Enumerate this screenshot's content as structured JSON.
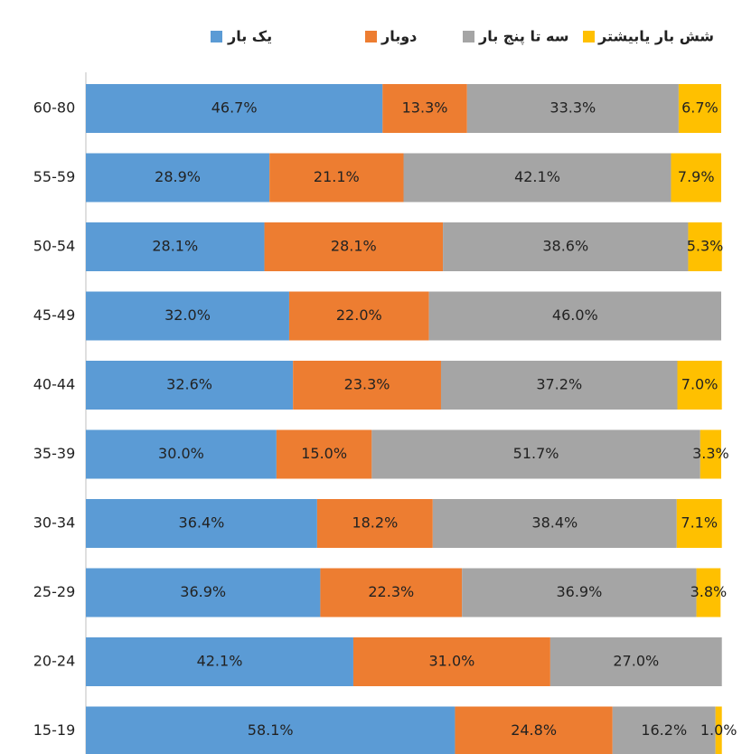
{
  "chart_data": {
    "type": "stacked_barh",
    "categories": [
      "60-80",
      "55-59",
      "50-54",
      "45-49",
      "40-44",
      "35-39",
      "30-34",
      "25-29",
      "20-24",
      "15-19"
    ],
    "xlim": [
      0,
      100
    ],
    "series": [
      {
        "name": "یک بار",
        "color": "#5b9bd5",
        "values": [
          46.7,
          28.9,
          28.1,
          32.0,
          32.6,
          30.0,
          36.4,
          36.9,
          42.1,
          58.1
        ],
        "value_labels": [
          "46.7%",
          "28.9%",
          "28.1%",
          "32.0%",
          "32.6%",
          "30.0%",
          "36.4%",
          "36.9%",
          "42.1%",
          "58.1%"
        ]
      },
      {
        "name": "دوبار",
        "color": "#ed7d31",
        "values": [
          13.3,
          21.1,
          28.1,
          22.0,
          23.3,
          15.0,
          18.2,
          22.3,
          31.0,
          24.8
        ],
        "value_labels": [
          "13.3%",
          "21.1%",
          "28.1%",
          "22.0%",
          "23.3%",
          "15.0%",
          "18.2%",
          "22.3%",
          "31.0%",
          "24.8%"
        ]
      },
      {
        "name": "سه تا پنج بار",
        "color": "#a5a5a5",
        "values": [
          33.3,
          42.1,
          38.6,
          46.0,
          37.2,
          51.7,
          38.4,
          36.9,
          27.0,
          16.2
        ],
        "value_labels": [
          "33.3%",
          "42.1%",
          "38.6%",
          "46.0%",
          "37.2%",
          "51.7%",
          "38.4%",
          "36.9%",
          "27.0%",
          "16.2%"
        ]
      },
      {
        "name": "شش بار یابیشتر",
        "color": "#ffc000",
        "values": [
          6.7,
          7.9,
          5.3,
          null,
          7.0,
          3.3,
          7.1,
          3.8,
          null,
          1.0
        ],
        "value_labels": [
          "6.7%",
          "7.9%",
          "5.3%",
          null,
          "7.0%",
          "3.3%",
          "7.1%",
          "3.8%",
          null,
          "1.0%"
        ]
      }
    ]
  }
}
